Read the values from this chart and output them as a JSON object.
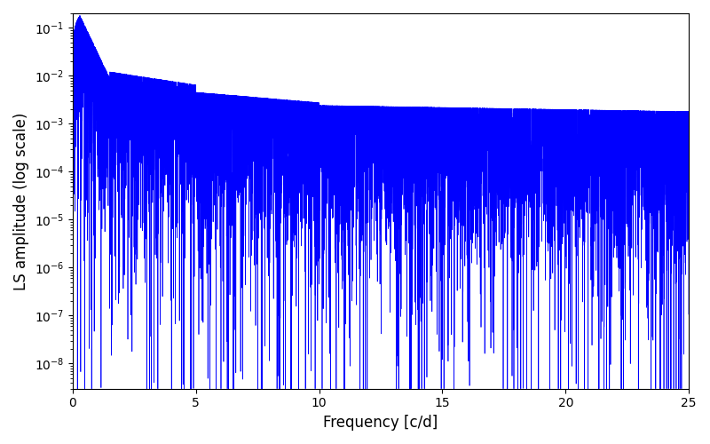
{
  "xlabel": "Frequency [c/d]",
  "ylabel": "LS amplitude (log scale)",
  "xlim": [
    0,
    25
  ],
  "ylim": [
    3e-09,
    0.2
  ],
  "xticks": [
    0,
    5,
    10,
    15,
    20,
    25
  ],
  "line_color": "#0000ff",
  "line_width": 0.5,
  "background_color": "#ffffff",
  "figsize": [
    8.0,
    5.0
  ],
  "dpi": 100,
  "freq_max": 25.0,
  "n_points": 8000,
  "seed": 123
}
